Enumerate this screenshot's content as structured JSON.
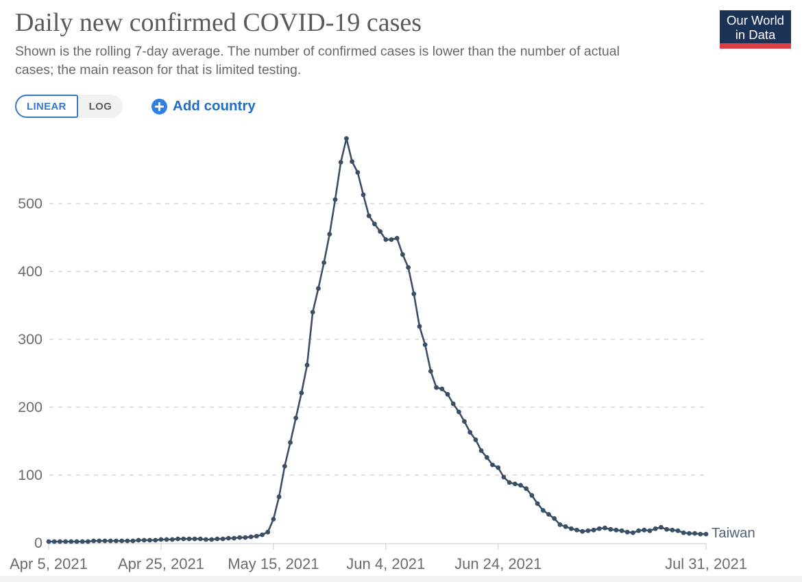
{
  "header": {
    "title": "Daily new confirmed COVID-19 cases",
    "subtitle": "Shown is the rolling 7-day average. The number of confirmed cases is lower than the number of actual cases; the main reason for that is limited testing.",
    "logo_line1": "Our World",
    "logo_line2": "in Data",
    "logo_bg_color": "#1b3357",
    "logo_bar_color": "#dc3e45"
  },
  "controls": {
    "linear_label": "LINEAR",
    "log_label": "LOG",
    "add_country_label": "Add country",
    "accent_blue": "#2b7de0"
  },
  "chart_data": {
    "type": "line",
    "title": "Daily new confirmed COVID-19 cases",
    "series_name": "Taiwan",
    "line_color": "#3a4e66",
    "label_color": "#51617a",
    "x_start_date": "Apr 5, 2021",
    "x_end_date": "Jul 31, 2021",
    "x_tick_labels": [
      "Apr 5, 2021",
      "Apr 25, 2021",
      "May 15, 2021",
      "Jun 4, 2021",
      "Jun 24, 2021",
      "Jul 31, 2021"
    ],
    "x_tick_days": [
      0,
      20,
      40,
      60,
      80,
      117
    ],
    "y_ticks": [
      0,
      100,
      200,
      300,
      400,
      500
    ],
    "ylim": [
      0,
      600
    ],
    "grid": "dashed-horizontal",
    "values": [
      2,
      2,
      2,
      2,
      2,
      2,
      2,
      2,
      3,
      3,
      3,
      3,
      3,
      3,
      3,
      3,
      4,
      4,
      4,
      4,
      5,
      5,
      5,
      6,
      6,
      6,
      6,
      6,
      5,
      5,
      6,
      6,
      7,
      7,
      8,
      8,
      9,
      10,
      12,
      16,
      35,
      68,
      113,
      148,
      184,
      221,
      262,
      340,
      375,
      413,
      455,
      506,
      561,
      596,
      562,
      546,
      513,
      482,
      470,
      459,
      447,
      447,
      449,
      425,
      406,
      367,
      319,
      292,
      253,
      229,
      227,
      219,
      205,
      193,
      179,
      163,
      152,
      136,
      126,
      115,
      111,
      97,
      89,
      87,
      85,
      80,
      70,
      58,
      48,
      42,
      36,
      27,
      24,
      21,
      19,
      17,
      18,
      19,
      21,
      22,
      20,
      19,
      18,
      16,
      15,
      18,
      19,
      18,
      21,
      23,
      20,
      19,
      18,
      15,
      14,
      14,
      13,
      13
    ]
  }
}
